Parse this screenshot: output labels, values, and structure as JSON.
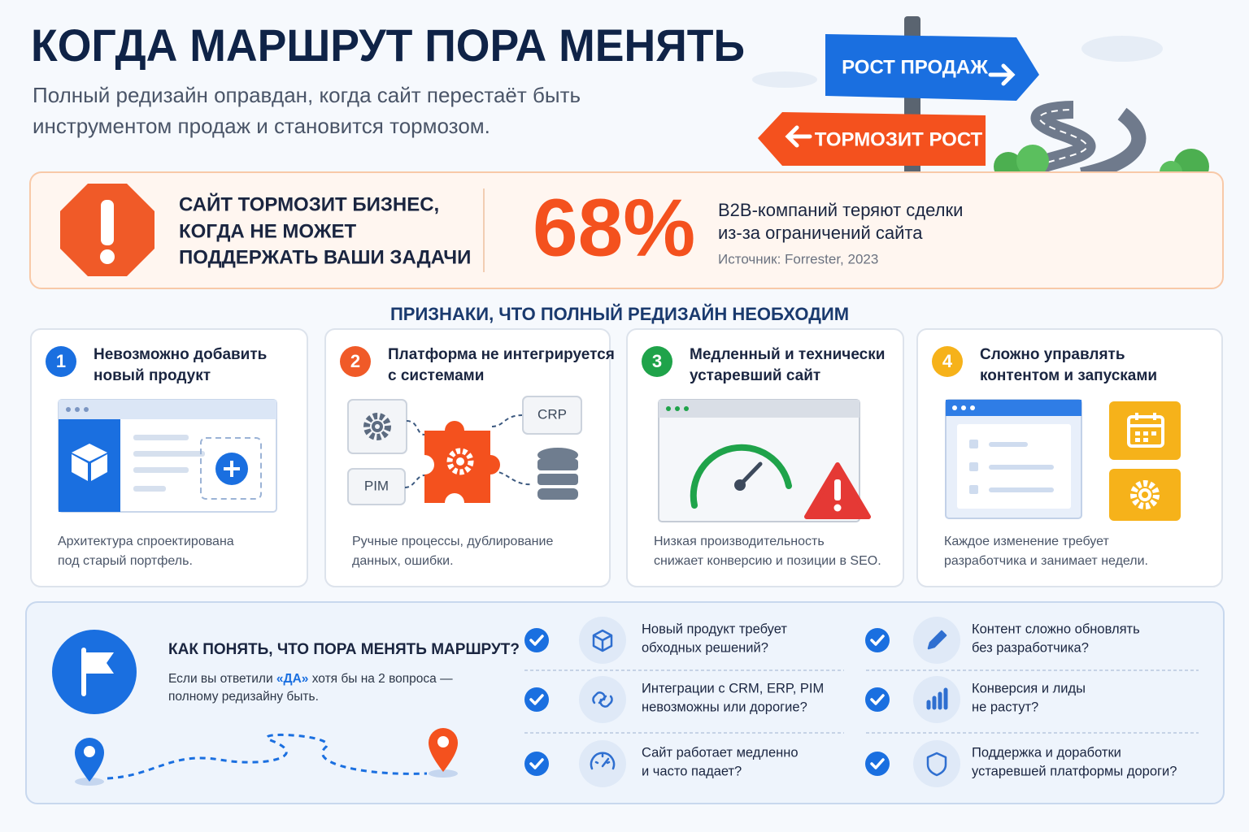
{
  "header": {
    "title": "КОГДА МАРШРУТ ПОРА МЕНЯТЬ",
    "subtitle": [
      "Полный редизайн оправдан, когда сайт перестаёт быть",
      "инструментом продаж и становится тормозом."
    ]
  },
  "road_signs": {
    "top": "РОСТ ПРОДАЖ",
    "bottom": "ТОРМОЗИТ РОСТ"
  },
  "alert": {
    "lines": [
      "САЙТ ТОРМОЗИТ БИЗНЕС,",
      "КОГДА НЕ МОЖЕТ",
      "ПОДДЕРЖАТЬ ВАШИ ЗАДАЧИ"
    ],
    "stat": "68%",
    "stat_text": [
      "B2B-компаний теряют сделки",
      "из-за ограничений сайта"
    ],
    "source": "Источник: Forrester, 2023"
  },
  "signs": {
    "title": "ПРИЗНАКИ, ЧТО ПОЛНЫЙ РЕДИЗАЙН НЕОБХОДИМ",
    "cards": [
      {
        "number": "1",
        "title": [
          "Невозможно добавить",
          "новый продукт"
        ],
        "caption": [
          "Архитектура спроектирована",
          "под старый портфель."
        ]
      },
      {
        "number": "2",
        "title": [
          "Платформа не интегрируется",
          "с системами"
        ],
        "labels": [
          "CRP",
          "PIM"
        ],
        "caption": [
          "Ручные процессы, дублирование",
          "данных, ошибки."
        ]
      },
      {
        "number": "3",
        "title": [
          "Медленный и технически",
          "устаревший сайт"
        ],
        "caption": [
          "Низкая производительность",
          "снижает конверсию и позиции в SEO."
        ]
      },
      {
        "number": "4",
        "title": [
          "Сложно управлять",
          "контентом и запусками"
        ],
        "caption": [
          "Каждое изменение требует",
          "разработчика и занимает недели."
        ]
      }
    ]
  },
  "checklist": {
    "title": "КАК ПОНЯТЬ, ЧТО ПОРА МЕНЯТЬ МАРШРУТ?",
    "intro": "Если вы ответили ",
    "highlight": "«ДА»",
    "rest": " хотя бы на 2 вопроса —",
    "line2": "полному редизайну быть.",
    "questions": [
      [
        "Новый продукт требует",
        "обходных решений?"
      ],
      [
        "Интеграции с CRM, ERP, PIM",
        "невозможны или дорогие?"
      ],
      [
        "Сайт работает медленно",
        "и часто падает?"
      ],
      [
        "Контент сложно обновлять",
        "без разработчика?"
      ],
      [
        "Конверсия и лиды",
        "не растут?"
      ],
      [
        "Поддержка и доработки",
        "устаревшей платформы дороги?"
      ]
    ]
  }
}
